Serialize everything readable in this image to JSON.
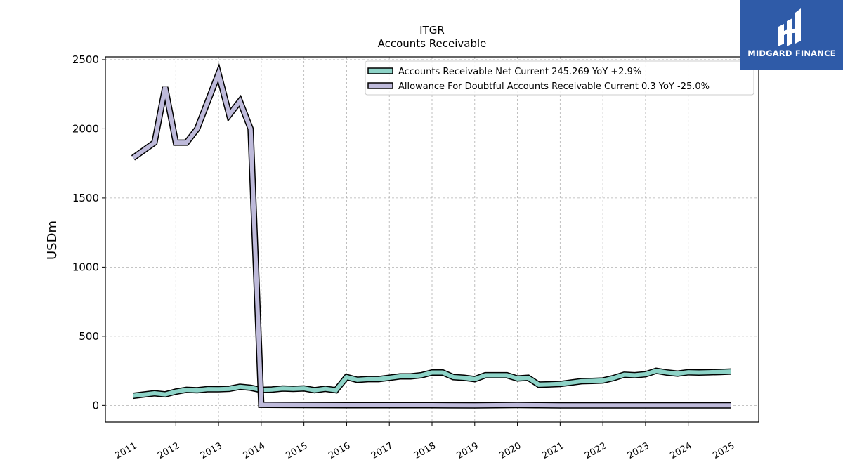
{
  "chart_data": {
    "type": "line",
    "title": "ITGR",
    "subtitle": "Accounts Receivable",
    "ylabel": "USDm",
    "xlabel": "",
    "ylim": [
      -120,
      2520
    ],
    "xlim": [
      2010.35,
      2025.65
    ],
    "yticks": [
      0,
      500,
      1000,
      1500,
      2000,
      2500
    ],
    "xticks": [
      2011,
      2012,
      2013,
      2014,
      2015,
      2016,
      2017,
      2018,
      2019,
      2020,
      2021,
      2022,
      2023,
      2024,
      2025
    ],
    "grid": true,
    "legend_position": "top-right",
    "series": [
      {
        "name": "Accounts Receivable Net Current  245.269 YoY +2.9%",
        "color": "#8dd3c7",
        "points": [
          [
            2011.0,
            70
          ],
          [
            2011.5,
            88
          ],
          [
            2011.75,
            80
          ],
          [
            2012.0,
            100
          ],
          [
            2012.25,
            113
          ],
          [
            2012.5,
            110
          ],
          [
            2012.75,
            118
          ],
          [
            2013.0,
            117
          ],
          [
            2013.25,
            120
          ],
          [
            2013.5,
            135
          ],
          [
            2013.75,
            128
          ],
          [
            2014.0,
            112
          ],
          [
            2014.25,
            115
          ],
          [
            2014.5,
            122
          ],
          [
            2014.75,
            120
          ],
          [
            2015.0,
            123
          ],
          [
            2015.25,
            110
          ],
          [
            2015.5,
            120
          ],
          [
            2015.75,
            110
          ],
          [
            2016.0,
            205
          ],
          [
            2016.25,
            185
          ],
          [
            2016.5,
            190
          ],
          [
            2016.75,
            190
          ],
          [
            2017.0,
            200
          ],
          [
            2017.25,
            210
          ],
          [
            2017.5,
            210
          ],
          [
            2017.75,
            218
          ],
          [
            2018.0,
            238
          ],
          [
            2018.25,
            238
          ],
          [
            2018.5,
            205
          ],
          [
            2018.75,
            200
          ],
          [
            2019.0,
            190
          ],
          [
            2019.25,
            218
          ],
          [
            2019.5,
            218
          ],
          [
            2019.75,
            218
          ],
          [
            2020.0,
            195
          ],
          [
            2020.25,
            200
          ],
          [
            2020.5,
            150
          ],
          [
            2020.75,
            152
          ],
          [
            2021.0,
            155
          ],
          [
            2021.25,
            165
          ],
          [
            2021.5,
            175
          ],
          [
            2021.75,
            177
          ],
          [
            2022.0,
            180
          ],
          [
            2022.25,
            198
          ],
          [
            2022.5,
            222
          ],
          [
            2022.75,
            218
          ],
          [
            2023.0,
            225
          ],
          [
            2023.25,
            250
          ],
          [
            2023.5,
            238
          ],
          [
            2023.75,
            230
          ],
          [
            2024.0,
            240
          ],
          [
            2024.25,
            238
          ],
          [
            2024.5,
            240
          ],
          [
            2024.75,
            242
          ],
          [
            2025.0,
            245
          ]
        ]
      },
      {
        "name": "Allowance For Doubtful Accounts Receivable Current  0.3 YoY -25.0%",
        "color": "#bebada",
        "points": [
          [
            2011.0,
            1790
          ],
          [
            2011.5,
            1900
          ],
          [
            2011.75,
            2300
          ],
          [
            2012.0,
            1900
          ],
          [
            2012.25,
            1900
          ],
          [
            2012.5,
            2000
          ],
          [
            2013.0,
            2400
          ],
          [
            2013.25,
            2100
          ],
          [
            2013.5,
            2200
          ],
          [
            2013.75,
            2000
          ],
          [
            2014.0,
            5
          ],
          [
            2014.5,
            4
          ],
          [
            2015.0,
            3
          ],
          [
            2016.0,
            2
          ],
          [
            2017.0,
            2
          ],
          [
            2018.0,
            2
          ],
          [
            2019.0,
            1
          ],
          [
            2020.0,
            3
          ],
          [
            2020.5,
            2
          ],
          [
            2021.0,
            0.5
          ],
          [
            2022.0,
            0.4
          ],
          [
            2023.0,
            0.4
          ],
          [
            2024.0,
            0.4
          ],
          [
            2025.0,
            0.3
          ]
        ]
      }
    ]
  },
  "brand": {
    "name": "MIDGARD FINANCE",
    "color": "#2f5ba8"
  }
}
